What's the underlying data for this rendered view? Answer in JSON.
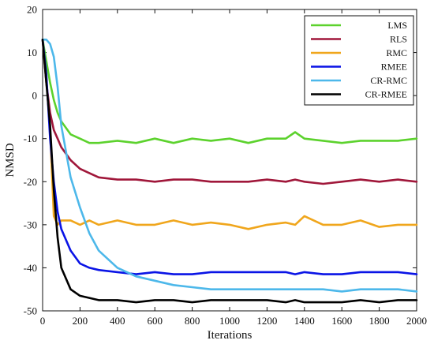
{
  "chart_data": {
    "type": "line",
    "title": "",
    "xlabel": "Iterations",
    "ylabel": "NMSD",
    "xlim": [
      0,
      2000
    ],
    "ylim": [
      -50,
      20
    ],
    "xticks": [
      0,
      200,
      400,
      600,
      800,
      1000,
      1200,
      1400,
      1600,
      1800,
      2000
    ],
    "yticks": [
      20,
      10,
      0,
      -10,
      -20,
      -30,
      -40,
      -50
    ],
    "grid": false,
    "legend_position": "top-right",
    "x": [
      0,
      20,
      40,
      60,
      80,
      100,
      150,
      200,
      250,
      300,
      400,
      500,
      600,
      700,
      800,
      900,
      1000,
      1100,
      1200,
      1300,
      1350,
      1400,
      1500,
      1600,
      1700,
      1800,
      1900,
      2000
    ],
    "series": [
      {
        "name": "LMS",
        "color": "#5cd22d",
        "values": [
          13,
          8,
          3,
          -1,
          -4,
          -6,
          -9,
          -10,
          -11,
          -11,
          -10.5,
          -11,
          -10,
          -11,
          -10,
          -10.5,
          -10,
          -11,
          -10,
          -10,
          -8.5,
          -10,
          -10.5,
          -11,
          -10.5,
          -10.5,
          -10.5,
          -10
        ]
      },
      {
        "name": "RLS",
        "color": "#a0173a",
        "values": [
          13,
          3,
          -4,
          -8,
          -10,
          -12,
          -15,
          -17,
          -18,
          -19,
          -19.5,
          -19.5,
          -20,
          -19.5,
          -19.5,
          -20,
          -20,
          -20,
          -19.5,
          -20,
          -19.5,
          -20,
          -20.5,
          -20,
          -19.5,
          -20,
          -19.5,
          -20
        ]
      },
      {
        "name": "RMC",
        "color": "#f0a61c",
        "values": [
          13,
          4,
          -8,
          -28,
          -30,
          -29,
          -29,
          -30,
          -29,
          -30,
          -29,
          -30,
          -30,
          -29,
          -30,
          -29.5,
          -30,
          -31,
          -30,
          -29.5,
          -30,
          -28,
          -30,
          -30,
          -29,
          -30.5,
          -30,
          -30
        ]
      },
      {
        "name": "RMEE",
        "color": "#0a14e6",
        "values": [
          13,
          5,
          -10,
          -20,
          -27,
          -31,
          -36,
          -39,
          -40,
          -40.5,
          -41,
          -41.5,
          -41,
          -41.5,
          -41.5,
          -41,
          -41,
          -41,
          -41,
          -41,
          -41.5,
          -41,
          -41.5,
          -41.5,
          -41,
          -41,
          -41,
          -41.5
        ]
      },
      {
        "name": "CR-RMC",
        "color": "#4db8ea",
        "values": [
          13,
          13,
          12,
          9,
          2,
          -7,
          -19,
          -26,
          -32,
          -36,
          -40,
          -42,
          -43,
          -44,
          -44.5,
          -45,
          -45,
          -45,
          -45,
          -45,
          -45,
          -45,
          -45,
          -45.5,
          -45,
          -45,
          -45,
          -45.5
        ]
      },
      {
        "name": "CR-RMEE",
        "color": "#000000",
        "values": [
          13,
          3,
          -7,
          -22,
          -33,
          -40,
          -45,
          -46.5,
          -47,
          -47.5,
          -47.5,
          -48,
          -47.5,
          -47.5,
          -48,
          -47.5,
          -47.5,
          -47.5,
          -47.5,
          -48,
          -47.5,
          -48,
          -48,
          -48,
          -47.5,
          -48,
          -47.5,
          -47.5
        ]
      }
    ]
  }
}
